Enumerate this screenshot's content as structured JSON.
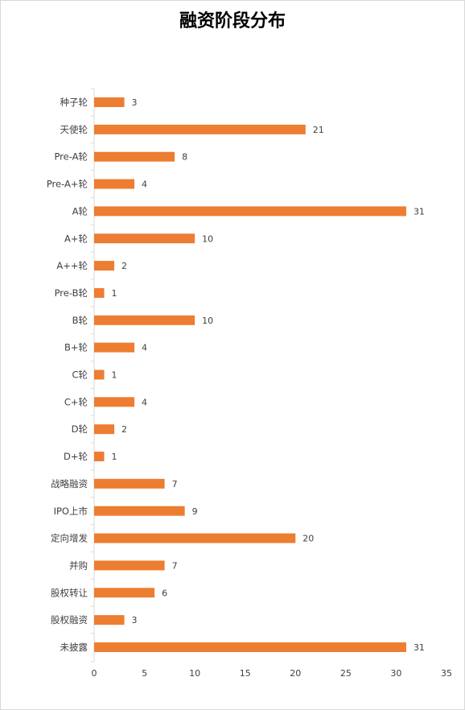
{
  "chart_data": {
    "type": "bar",
    "orientation": "horizontal",
    "title": "融资阶段分布",
    "categories": [
      "种子轮",
      "天使轮",
      "Pre-A轮",
      "Pre-A+轮",
      "A轮",
      "A+轮",
      "A++轮",
      "Pre-B轮",
      "B轮",
      "B+轮",
      "C轮",
      "C+轮",
      "D轮",
      "D+轮",
      "战略融资",
      "IPO上市",
      "定向增发",
      "并购",
      "股权转让",
      "股权融资",
      "未披露"
    ],
    "values": [
      3,
      21,
      8,
      4,
      31,
      10,
      2,
      1,
      10,
      4,
      1,
      4,
      2,
      1,
      7,
      9,
      20,
      7,
      6,
      3,
      31
    ],
    "xlim": [
      0,
      35
    ],
    "xticks": [
      0,
      5,
      10,
      15,
      20,
      25,
      30,
      35
    ],
    "grid": false,
    "legend": "none",
    "bar_color": "#ED7D31"
  }
}
